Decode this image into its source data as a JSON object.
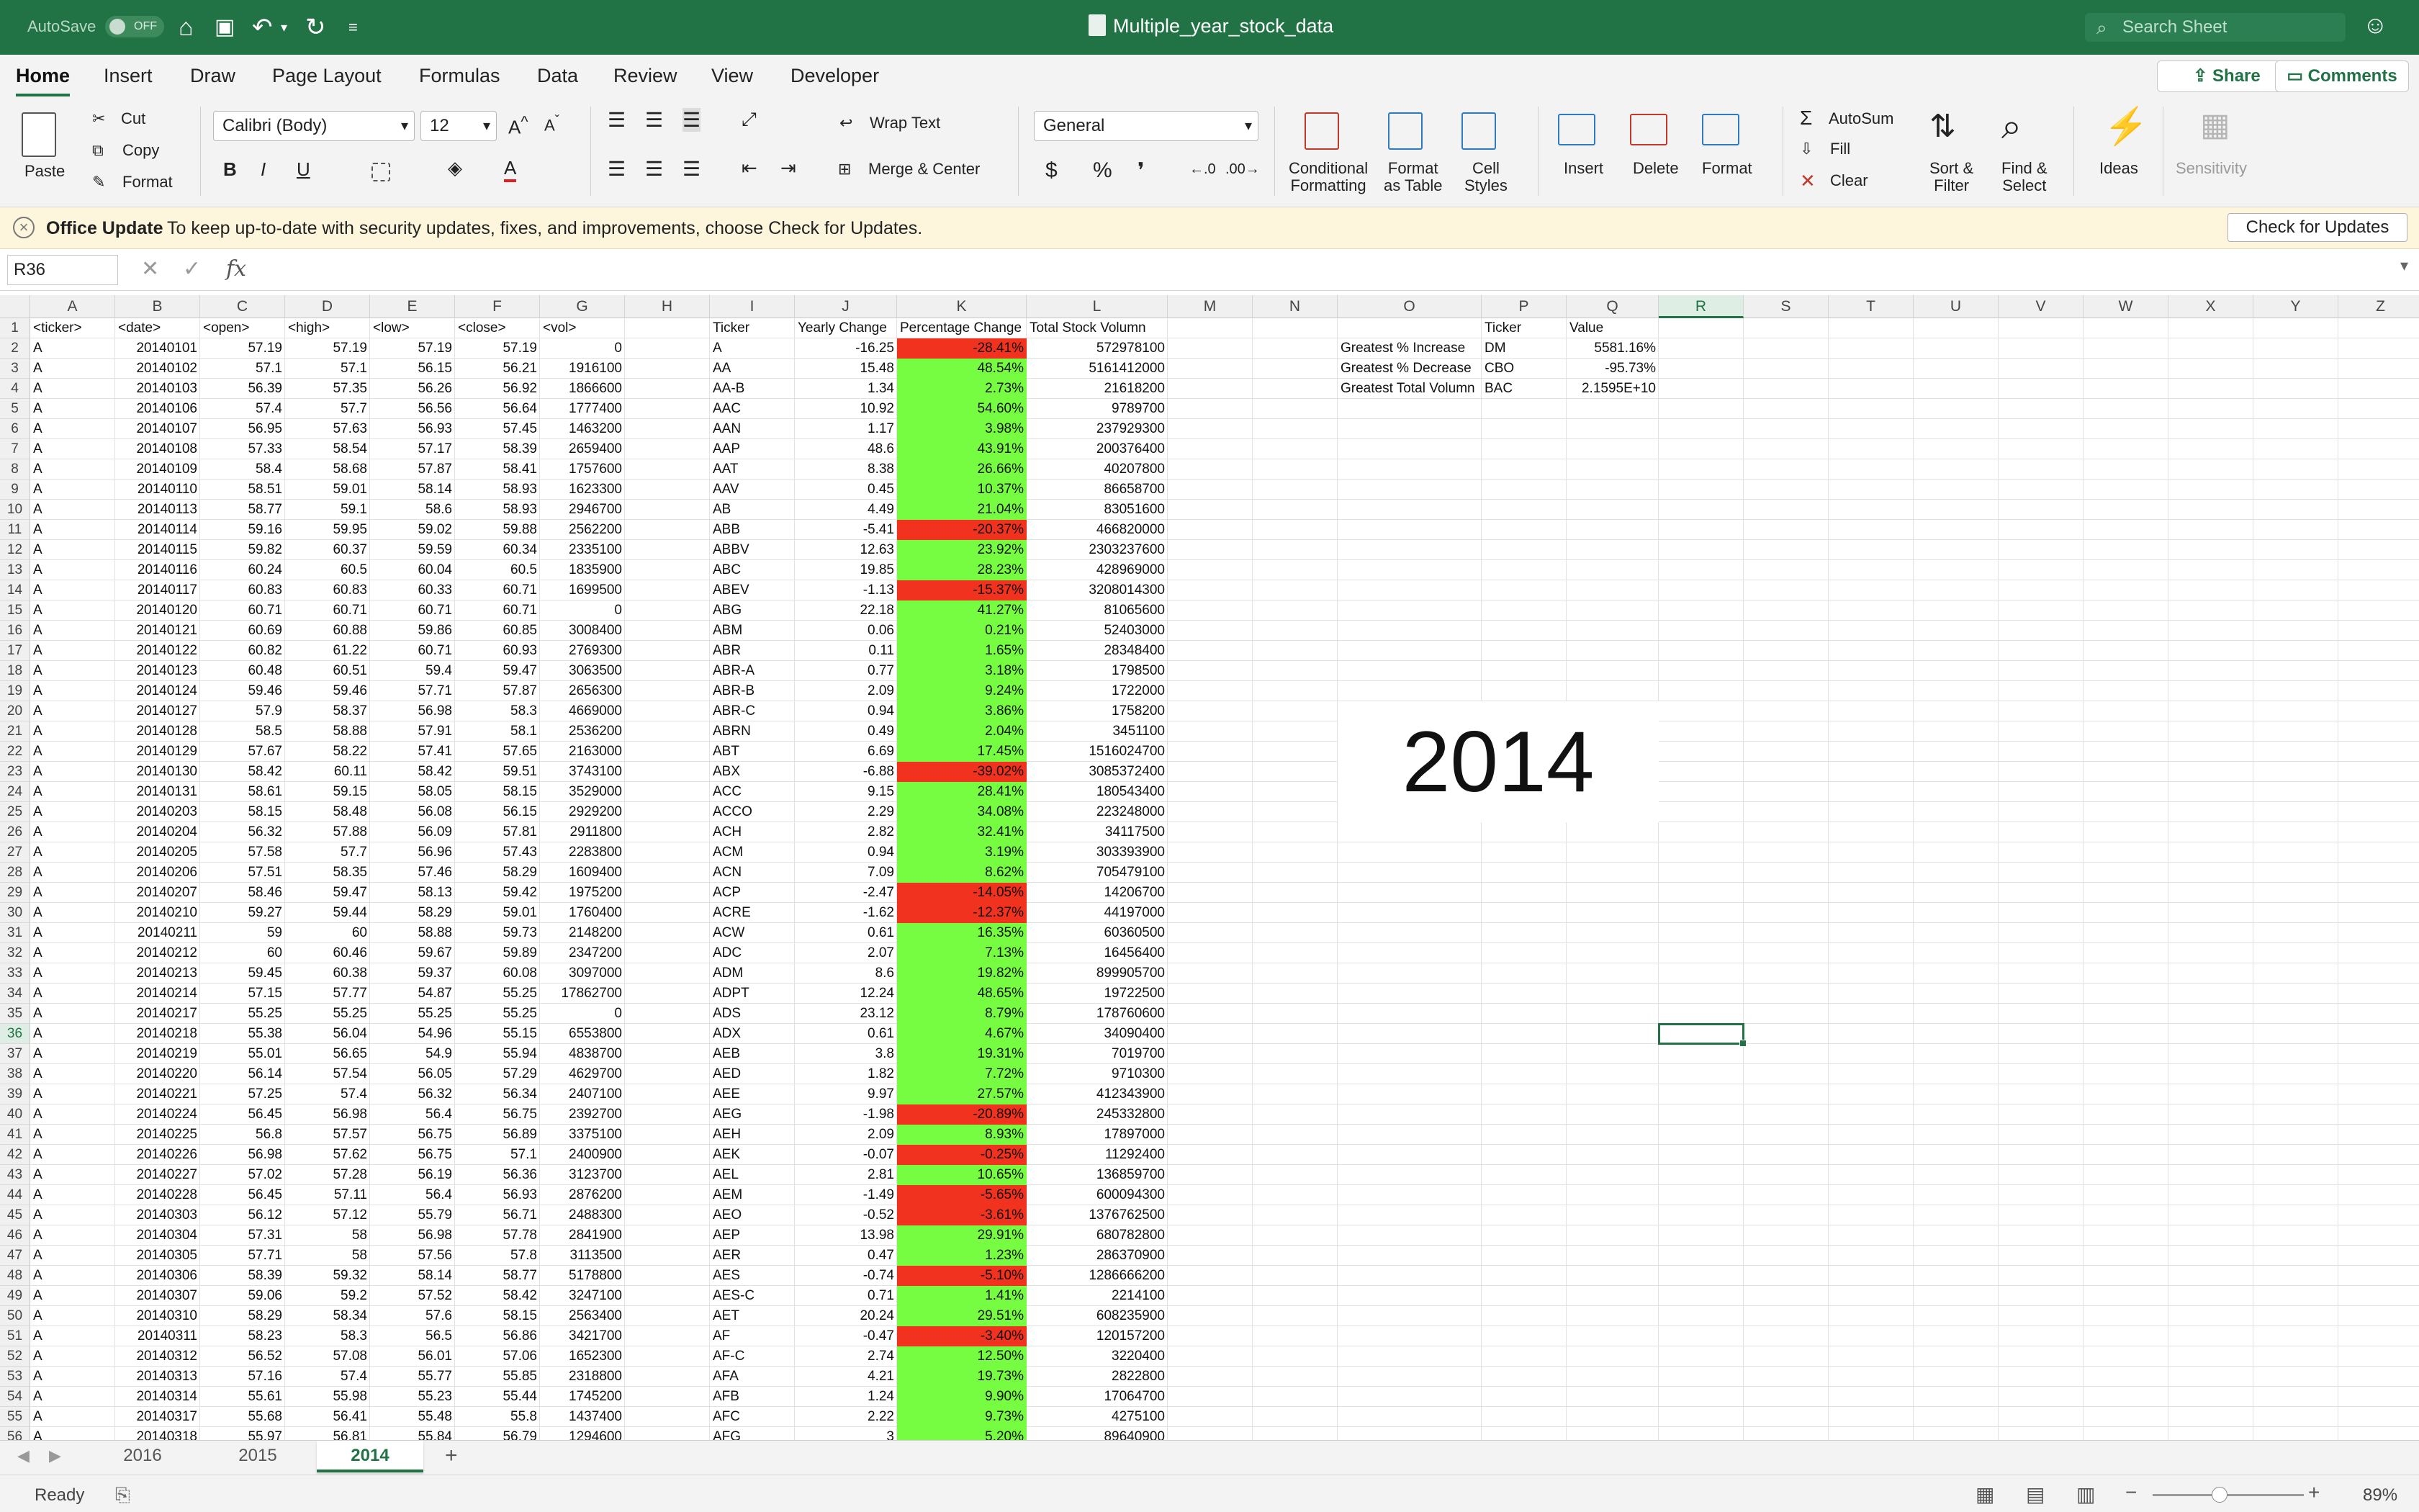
{
  "titlebar": {
    "autosave": "AutoSave",
    "autosave_state": "OFF",
    "doc_title": "Multiple_year_stock_data",
    "search_placeholder": "Search Sheet"
  },
  "ribbon_tabs": [
    "Home",
    "Insert",
    "Draw",
    "Page Layout",
    "Formulas",
    "Data",
    "Review",
    "View",
    "Developer"
  ],
  "share": "Share",
  "comments": "Comments",
  "ribbon": {
    "paste": "Paste",
    "cut": "Cut",
    "copy": "Copy",
    "format": "Format",
    "font": "Calibri (Body)",
    "size": "12",
    "bold": "B",
    "italic": "I",
    "underline": "U",
    "wrap": "Wrap Text",
    "merge": "Merge & Center",
    "numfmt": "General",
    "dollar": "$",
    "pct": "%",
    "comma": "❜",
    "cond1": "Conditional",
    "cond2": "Formatting",
    "fat1": "Format",
    "fat2": "as Table",
    "cs1": "Cell",
    "cs2": "Styles",
    "insert": "Insert",
    "delete": "Delete",
    "format2": "Format",
    "autosum": "AutoSum",
    "fill": "Fill",
    "clear": "Clear",
    "sort1": "Sort &",
    "sort2": "Filter",
    "find1": "Find &",
    "find2": "Select",
    "ideas": "Ideas",
    "sensitivity": "Sensitivity"
  },
  "msgbar": {
    "title": "Office Update",
    "text": "To keep up-to-date with security updates, fixes, and improvements, choose Check for Updates.",
    "button": "Check for Updates"
  },
  "formula": {
    "namebox": "R36",
    "fx": "fx"
  },
  "columns": [
    "A",
    "B",
    "C",
    "D",
    "E",
    "F",
    "G",
    "H",
    "I",
    "J",
    "K",
    "L",
    "M",
    "N",
    "O",
    "P",
    "Q",
    "R",
    "S",
    "T",
    "U",
    "V",
    "W",
    "X",
    "Y",
    "Z"
  ],
  "headers": {
    "a": "<ticker>",
    "b": "<date>",
    "c": "<open>",
    "d": "<high>",
    "e": "<low>",
    "f": "<close>",
    "g": "<vol>",
    "i": "Ticker",
    "j": "Yearly Change",
    "k": "Percentage Change",
    "l": "Total Stock Volumn"
  },
  "raw": [
    [
      "A",
      "20140101",
      "57.19",
      "57.19",
      "57.19",
      "57.19",
      "0"
    ],
    [
      "A",
      "20140102",
      "57.1",
      "57.1",
      "56.15",
      "56.21",
      "1916100"
    ],
    [
      "A",
      "20140103",
      "56.39",
      "57.35",
      "56.26",
      "56.92",
      "1866600"
    ],
    [
      "A",
      "20140106",
      "57.4",
      "57.7",
      "56.56",
      "56.64",
      "1777400"
    ],
    [
      "A",
      "20140107",
      "56.95",
      "57.63",
      "56.93",
      "57.45",
      "1463200"
    ],
    [
      "A",
      "20140108",
      "57.33",
      "58.54",
      "57.17",
      "58.39",
      "2659400"
    ],
    [
      "A",
      "20140109",
      "58.4",
      "58.68",
      "57.87",
      "58.41",
      "1757600"
    ],
    [
      "A",
      "20140110",
      "58.51",
      "59.01",
      "58.14",
      "58.93",
      "1623300"
    ],
    [
      "A",
      "20140113",
      "58.77",
      "59.1",
      "58.6",
      "58.93",
      "2946700"
    ],
    [
      "A",
      "20140114",
      "59.16",
      "59.95",
      "59.02",
      "59.88",
      "2562200"
    ],
    [
      "A",
      "20140115",
      "59.82",
      "60.37",
      "59.59",
      "60.34",
      "2335100"
    ],
    [
      "A",
      "20140116",
      "60.24",
      "60.5",
      "60.04",
      "60.5",
      "1835900"
    ],
    [
      "A",
      "20140117",
      "60.83",
      "60.83",
      "60.33",
      "60.71",
      "1699500"
    ],
    [
      "A",
      "20140120",
      "60.71",
      "60.71",
      "60.71",
      "60.71",
      "0"
    ],
    [
      "A",
      "20140121",
      "60.69",
      "60.88",
      "59.86",
      "60.85",
      "3008400"
    ],
    [
      "A",
      "20140122",
      "60.82",
      "61.22",
      "60.71",
      "60.93",
      "2769300"
    ],
    [
      "A",
      "20140123",
      "60.48",
      "60.51",
      "59.4",
      "59.47",
      "3063500"
    ],
    [
      "A",
      "20140124",
      "59.46",
      "59.46",
      "57.71",
      "57.87",
      "2656300"
    ],
    [
      "A",
      "20140127",
      "57.9",
      "58.37",
      "56.98",
      "58.3",
      "4669000"
    ],
    [
      "A",
      "20140128",
      "58.5",
      "58.88",
      "57.91",
      "58.1",
      "2536200"
    ],
    [
      "A",
      "20140129",
      "57.67",
      "58.22",
      "57.41",
      "57.65",
      "2163000"
    ],
    [
      "A",
      "20140130",
      "58.42",
      "60.11",
      "58.42",
      "59.51",
      "3743100"
    ],
    [
      "A",
      "20140131",
      "58.61",
      "59.15",
      "58.05",
      "58.15",
      "3529000"
    ],
    [
      "A",
      "20140203",
      "58.15",
      "58.48",
      "56.08",
      "56.15",
      "2929200"
    ],
    [
      "A",
      "20140204",
      "56.32",
      "57.88",
      "56.09",
      "57.81",
      "2911800"
    ],
    [
      "A",
      "20140205",
      "57.58",
      "57.7",
      "56.96",
      "57.43",
      "2283800"
    ],
    [
      "A",
      "20140206",
      "57.51",
      "58.35",
      "57.46",
      "58.29",
      "1609400"
    ],
    [
      "A",
      "20140207",
      "58.46",
      "59.47",
      "58.13",
      "59.42",
      "1975200"
    ],
    [
      "A",
      "20140210",
      "59.27",
      "59.44",
      "58.29",
      "59.01",
      "1760400"
    ],
    [
      "A",
      "20140211",
      "59",
      "60",
      "58.88",
      "59.73",
      "2148200"
    ],
    [
      "A",
      "20140212",
      "60",
      "60.46",
      "59.67",
      "59.89",
      "2347200"
    ],
    [
      "A",
      "20140213",
      "59.45",
      "60.38",
      "59.37",
      "60.08",
      "3097000"
    ],
    [
      "A",
      "20140214",
      "57.15",
      "57.77",
      "54.87",
      "55.25",
      "17862700"
    ],
    [
      "A",
      "20140217",
      "55.25",
      "55.25",
      "55.25",
      "55.25",
      "0"
    ],
    [
      "A",
      "20140218",
      "55.38",
      "56.04",
      "54.96",
      "55.15",
      "6553800"
    ],
    [
      "A",
      "20140219",
      "55.01",
      "56.65",
      "54.9",
      "55.94",
      "4838700"
    ],
    [
      "A",
      "20140220",
      "56.14",
      "57.54",
      "56.05",
      "57.29",
      "4629700"
    ],
    [
      "A",
      "20140221",
      "57.25",
      "57.4",
      "56.32",
      "56.34",
      "2407100"
    ],
    [
      "A",
      "20140224",
      "56.45",
      "56.98",
      "56.4",
      "56.75",
      "2392700"
    ],
    [
      "A",
      "20140225",
      "56.8",
      "57.57",
      "56.75",
      "56.89",
      "3375100"
    ],
    [
      "A",
      "20140226",
      "56.98",
      "57.62",
      "56.75",
      "57.1",
      "2400900"
    ],
    [
      "A",
      "20140227",
      "57.02",
      "57.28",
      "56.19",
      "56.36",
      "3123700"
    ],
    [
      "A",
      "20140228",
      "56.45",
      "57.11",
      "56.4",
      "56.93",
      "2876200"
    ],
    [
      "A",
      "20140303",
      "56.12",
      "57.12",
      "55.79",
      "56.71",
      "2488300"
    ],
    [
      "A",
      "20140304",
      "57.31",
      "58",
      "56.98",
      "57.78",
      "2841900"
    ],
    [
      "A",
      "20140305",
      "57.71",
      "58",
      "57.56",
      "57.8",
      "3113500"
    ],
    [
      "A",
      "20140306",
      "58.39",
      "59.32",
      "58.14",
      "58.77",
      "5178800"
    ],
    [
      "A",
      "20140307",
      "59.06",
      "59.2",
      "57.52",
      "58.42",
      "3247100"
    ],
    [
      "A",
      "20140310",
      "58.29",
      "58.34",
      "57.6",
      "58.15",
      "2563400"
    ],
    [
      "A",
      "20140311",
      "58.23",
      "58.3",
      "56.5",
      "56.86",
      "3421700"
    ],
    [
      "A",
      "20140312",
      "56.52",
      "57.08",
      "56.01",
      "57.06",
      "1652300"
    ],
    [
      "A",
      "20140313",
      "57.16",
      "57.4",
      "55.77",
      "55.85",
      "2318800"
    ],
    [
      "A",
      "20140314",
      "55.61",
      "55.98",
      "55.23",
      "55.44",
      "1745200"
    ],
    [
      "A",
      "20140317",
      "55.68",
      "56.41",
      "55.48",
      "55.8",
      "1437400"
    ],
    [
      "A",
      "20140318",
      "55.97",
      "56.81",
      "55.84",
      "56.79",
      "1294600"
    ]
  ],
  "summary": [
    [
      "A",
      "-16.25",
      "-28.41%",
      "572978100"
    ],
    [
      "AA",
      "15.48",
      "48.54%",
      "5161412000"
    ],
    [
      "AA-B",
      "1.34",
      "2.73%",
      "21618200"
    ],
    [
      "AAC",
      "10.92",
      "54.60%",
      "9789700"
    ],
    [
      "AAN",
      "1.17",
      "3.98%",
      "237929300"
    ],
    [
      "AAP",
      "48.6",
      "43.91%",
      "200376400"
    ],
    [
      "AAT",
      "8.38",
      "26.66%",
      "40207800"
    ],
    [
      "AAV",
      "0.45",
      "10.37%",
      "86658700"
    ],
    [
      "AB",
      "4.49",
      "21.04%",
      "83051600"
    ],
    [
      "ABB",
      "-5.41",
      "-20.37%",
      "466820000"
    ],
    [
      "ABBV",
      "12.63",
      "23.92%",
      "2303237600"
    ],
    [
      "ABC",
      "19.85",
      "28.23%",
      "428969000"
    ],
    [
      "ABEV",
      "-1.13",
      "-15.37%",
      "3208014300"
    ],
    [
      "ABG",
      "22.18",
      "41.27%",
      "81065600"
    ],
    [
      "ABM",
      "0.06",
      "0.21%",
      "52403000"
    ],
    [
      "ABR",
      "0.11",
      "1.65%",
      "28348400"
    ],
    [
      "ABR-A",
      "0.77",
      "3.18%",
      "1798500"
    ],
    [
      "ABR-B",
      "2.09",
      "9.24%",
      "1722000"
    ],
    [
      "ABR-C",
      "0.94",
      "3.86%",
      "1758200"
    ],
    [
      "ABRN",
      "0.49",
      "2.04%",
      "3451100"
    ],
    [
      "ABT",
      "6.69",
      "17.45%",
      "1516024700"
    ],
    [
      "ABX",
      "-6.88",
      "-39.02%",
      "3085372400"
    ],
    [
      "ACC",
      "9.15",
      "28.41%",
      "180543400"
    ],
    [
      "ACCO",
      "2.29",
      "34.08%",
      "223248000"
    ],
    [
      "ACH",
      "2.82",
      "32.41%",
      "34117500"
    ],
    [
      "ACM",
      "0.94",
      "3.19%",
      "303393900"
    ],
    [
      "ACN",
      "7.09",
      "8.62%",
      "705479100"
    ],
    [
      "ACP",
      "-2.47",
      "-14.05%",
      "14206700"
    ],
    [
      "ACRE",
      "-1.62",
      "-12.37%",
      "44197000"
    ],
    [
      "ACW",
      "0.61",
      "16.35%",
      "60360500"
    ],
    [
      "ADC",
      "2.07",
      "7.13%",
      "16456400"
    ],
    [
      "ADM",
      "8.6",
      "19.82%",
      "899905700"
    ],
    [
      "ADPT",
      "12.24",
      "48.65%",
      "19722500"
    ],
    [
      "ADS",
      "23.12",
      "8.79%",
      "178760600"
    ],
    [
      "ADX",
      "0.61",
      "4.67%",
      "34090400"
    ],
    [
      "AEB",
      "3.8",
      "19.31%",
      "7019700"
    ],
    [
      "AED",
      "1.82",
      "7.72%",
      "9710300"
    ],
    [
      "AEE",
      "9.97",
      "27.57%",
      "412343900"
    ],
    [
      "AEG",
      "-1.98",
      "-20.89%",
      "245332800"
    ],
    [
      "AEH",
      "2.09",
      "8.93%",
      "17897000"
    ],
    [
      "AEK",
      "-0.07",
      "-0.25%",
      "11292400"
    ],
    [
      "AEL",
      "2.81",
      "10.65%",
      "136859700"
    ],
    [
      "AEM",
      "-1.49",
      "-5.65%",
      "600094300"
    ],
    [
      "AEO",
      "-0.52",
      "-3.61%",
      "1376762500"
    ],
    [
      "AEP",
      "13.98",
      "29.91%",
      "680782800"
    ],
    [
      "AER",
      "0.47",
      "1.23%",
      "286370900"
    ],
    [
      "AES",
      "-0.74",
      "-5.10%",
      "1286666200"
    ],
    [
      "AES-C",
      "0.71",
      "1.41%",
      "2214100"
    ],
    [
      "AET",
      "20.24",
      "29.51%",
      "608235900"
    ],
    [
      "AF",
      "-0.47",
      "-3.40%",
      "120157200"
    ],
    [
      "AF-C",
      "2.74",
      "12.50%",
      "3220400"
    ],
    [
      "AFA",
      "4.21",
      "19.73%",
      "2822800"
    ],
    [
      "AFB",
      "1.24",
      "9.90%",
      "17064700"
    ],
    [
      "AFC",
      "2.22",
      "9.73%",
      "4275100"
    ],
    [
      "AFG",
      "3",
      "5.20%",
      "89640900"
    ]
  ],
  "greatest": {
    "hdr_ticker": "Ticker",
    "hdr_value": "Value",
    "rows": [
      [
        "Greatest % Increase",
        "DM",
        "5581.16%"
      ],
      [
        "Greatest % Decrease",
        "CBO",
        "-95.73%"
      ],
      [
        "Greatest Total Volumn",
        "BAC",
        "2.1595E+10"
      ]
    ]
  },
  "textbox": "2014",
  "sheets": [
    "2016",
    "2015",
    "2014"
  ],
  "status": {
    "ready": "Ready",
    "zoom": "89%"
  },
  "colors": {
    "positive": "#76fc40",
    "negative": "#f0321e",
    "accent": "#217346"
  }
}
